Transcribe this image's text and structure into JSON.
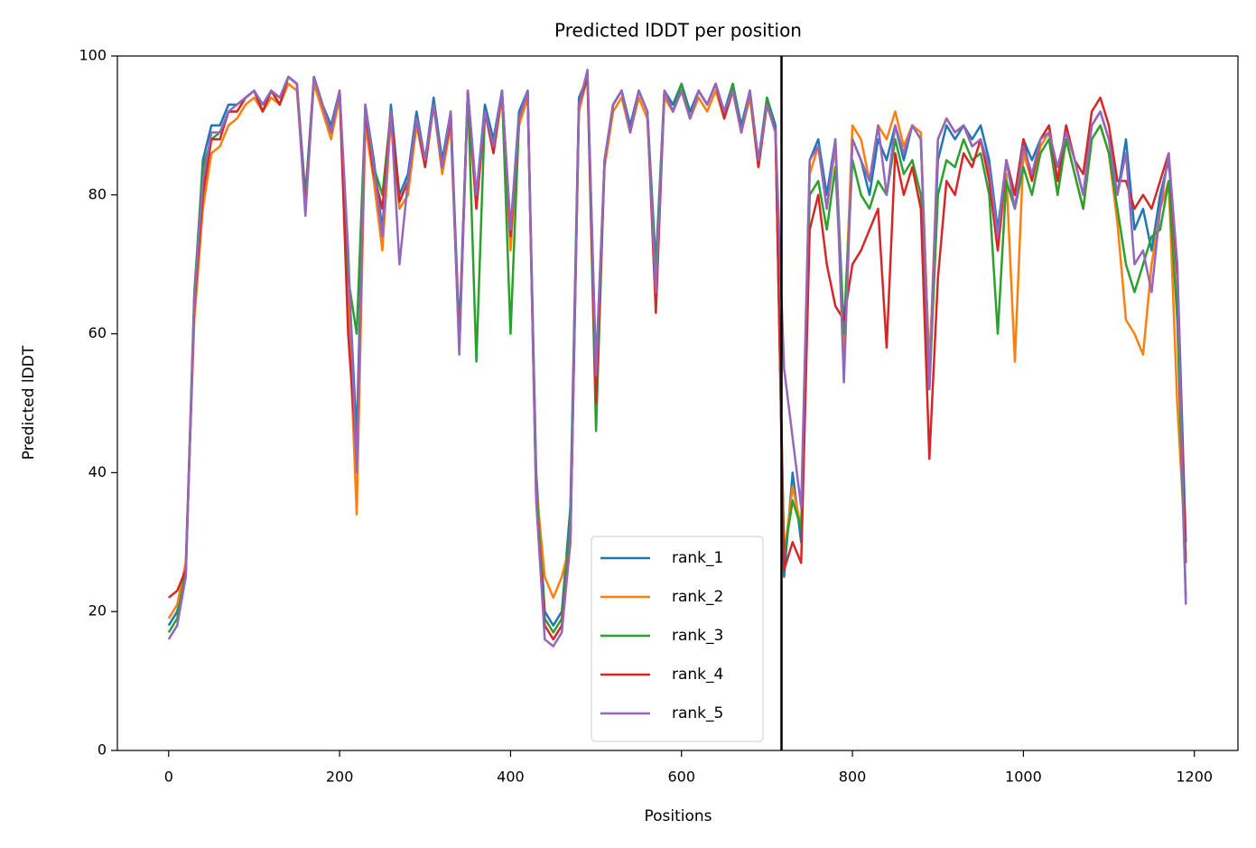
{
  "chart_data": {
    "type": "line",
    "title": "Predicted lDDT per position",
    "xlabel": "Positions",
    "ylabel": "Predicted lDDT",
    "xlim": [
      -60,
      1251
    ],
    "ylim": [
      0,
      100
    ],
    "xticks": [
      0,
      200,
      400,
      600,
      800,
      1000,
      1200
    ],
    "yticks": [
      0,
      20,
      40,
      60,
      80,
      100
    ],
    "vline": 717,
    "legend": "lower center",
    "x": [
      0,
      10,
      20,
      30,
      40,
      50,
      60,
      70,
      80,
      90,
      100,
      110,
      120,
      130,
      140,
      150,
      160,
      170,
      180,
      190,
      200,
      210,
      220,
      230,
      240,
      250,
      260,
      270,
      280,
      290,
      300,
      310,
      320,
      330,
      340,
      350,
      360,
      370,
      380,
      390,
      400,
      410,
      420,
      430,
      440,
      450,
      460,
      470,
      480,
      490,
      500,
      510,
      520,
      530,
      540,
      550,
      560,
      570,
      580,
      590,
      600,
      610,
      620,
      630,
      640,
      650,
      660,
      670,
      680,
      690,
      700,
      710,
      720,
      730,
      740,
      750,
      760,
      770,
      780,
      790,
      800,
      810,
      820,
      830,
      840,
      850,
      860,
      870,
      880,
      890,
      900,
      910,
      920,
      930,
      940,
      950,
      960,
      970,
      980,
      990,
      1000,
      1010,
      1020,
      1030,
      1040,
      1050,
      1060,
      1070,
      1080,
      1090,
      1100,
      1110,
      1120,
      1130,
      1140,
      1150,
      1160,
      1170,
      1180,
      1190
    ],
    "series": [
      {
        "name": "rank_1",
        "color": "#1f77b4",
        "values": [
          18,
          20,
          25,
          65,
          85,
          90,
          90,
          93,
          93,
          94,
          95,
          93,
          95,
          94,
          97,
          96,
          80,
          97,
          93,
          90,
          95,
          70,
          45,
          93,
          85,
          75,
          93,
          80,
          83,
          92,
          85,
          94,
          85,
          92,
          60,
          95,
          80,
          93,
          88,
          95,
          75,
          92,
          95,
          40,
          20,
          18,
          20,
          35,
          94,
          97,
          55,
          85,
          93,
          95,
          90,
          95,
          92,
          70,
          95,
          93,
          96,
          92,
          95,
          93,
          96,
          92,
          96,
          90,
          95,
          85,
          94,
          90,
          25,
          40,
          30,
          85,
          88,
          80,
          88,
          60,
          88,
          85,
          80,
          88,
          85,
          90,
          85,
          90,
          88,
          55,
          85,
          90,
          88,
          90,
          88,
          90,
          85,
          75,
          85,
          80,
          88,
          85,
          88,
          90,
          82,
          90,
          85,
          80,
          90,
          92,
          88,
          80,
          88,
          75,
          78,
          72,
          80,
          85,
          70,
          30
        ]
      },
      {
        "name": "rank_2",
        "color": "#ff7f0e",
        "values": [
          19,
          21,
          27,
          62,
          78,
          86,
          87,
          90,
          91,
          93,
          94,
          92,
          94,
          93,
          96,
          95,
          79,
          96,
          92,
          88,
          94,
          65,
          34,
          90,
          82,
          72,
          91,
          78,
          80,
          90,
          84,
          93,
          83,
          90,
          58,
          94,
          78,
          92,
          86,
          94,
          72,
          90,
          94,
          38,
          25,
          22,
          25,
          30,
          92,
          97,
          52,
          84,
          92,
          94,
          89,
          94,
          91,
          68,
          94,
          92,
          95,
          91,
          94,
          92,
          95,
          91,
          95,
          89,
          94,
          84,
          93,
          89,
          28,
          38,
          32,
          83,
          87,
          78,
          87,
          58,
          90,
          88,
          82,
          90,
          88,
          92,
          87,
          90,
          89,
          54,
          88,
          91,
          89,
          90,
          87,
          88,
          83,
          72,
          83,
          56,
          86,
          82,
          87,
          89,
          80,
          88,
          83,
          78,
          88,
          90,
          86,
          76,
          62,
          60,
          57,
          70,
          78,
          82,
          50,
          28
        ]
      },
      {
        "name": "rank_3",
        "color": "#2ca02c",
        "values": [
          17,
          19,
          26,
          66,
          84,
          88,
          89,
          92,
          92,
          94,
          95,
          92,
          95,
          93,
          97,
          96,
          79,
          97,
          93,
          89,
          95,
          68,
          60,
          92,
          84,
          80,
          92,
          79,
          82,
          91,
          84,
          93,
          84,
          91,
          59,
          95,
          56,
          92,
          87,
          95,
          60,
          91,
          95,
          38,
          19,
          17,
          19,
          33,
          93,
          97,
          46,
          85,
          93,
          95,
          89,
          95,
          92,
          69,
          95,
          92,
          96,
          91,
          95,
          93,
          96,
          91,
          96,
          89,
          95,
          84,
          94,
          89,
          28,
          36,
          32,
          80,
          82,
          75,
          84,
          60,
          85,
          80,
          78,
          82,
          80,
          88,
          83,
          85,
          80,
          52,
          80,
          85,
          84,
          88,
          85,
          86,
          80,
          60,
          82,
          78,
          84,
          80,
          86,
          88,
          80,
          88,
          83,
          78,
          88,
          90,
          86,
          78,
          70,
          66,
          70,
          74,
          75,
          82,
          62,
          22
        ]
      },
      {
        "name": "rank_4",
        "color": "#d62728",
        "values": [
          22,
          23,
          26,
          64,
          80,
          88,
          88,
          92,
          92,
          94,
          95,
          92,
          95,
          93,
          97,
          96,
          78,
          97,
          93,
          89,
          95,
          60,
          42,
          92,
          83,
          78,
          92,
          79,
          82,
          91,
          84,
          93,
          84,
          91,
          58,
          95,
          78,
          92,
          86,
          95,
          74,
          91,
          95,
          36,
          18,
          16,
          18,
          30,
          93,
          97,
          50,
          85,
          93,
          95,
          89,
          95,
          92,
          63,
          95,
          92,
          95,
          91,
          95,
          93,
          96,
          91,
          95,
          89,
          95,
          84,
          93,
          89,
          26,
          30,
          27,
          75,
          80,
          70,
          64,
          62,
          70,
          72,
          75,
          78,
          58,
          86,
          80,
          84,
          78,
          42,
          68,
          82,
          80,
          86,
          84,
          88,
          82,
          72,
          85,
          80,
          88,
          82,
          88,
          90,
          82,
          90,
          85,
          83,
          92,
          94,
          90,
          82,
          82,
          78,
          80,
          78,
          82,
          86,
          68,
          27
        ]
      },
      {
        "name": "rank_5",
        "color": "#9467bd",
        "values": [
          16,
          18,
          25,
          65,
          82,
          89,
          89,
          92,
          93,
          94,
          95,
          93,
          95,
          94,
          97,
          96,
          77,
          97,
          93,
          89,
          95,
          72,
          40,
          93,
          84,
          74,
          92,
          70,
          82,
          91,
          85,
          93,
          84,
          92,
          57,
          95,
          80,
          92,
          87,
          95,
          75,
          91,
          95,
          36,
          16,
          15,
          17,
          30,
          93,
          98,
          54,
          85,
          93,
          95,
          89,
          95,
          92,
          66,
          95,
          92,
          95,
          91,
          95,
          93,
          96,
          92,
          95,
          89,
          95,
          85,
          93,
          89,
          55,
          45,
          35,
          85,
          87,
          78,
          88,
          53,
          88,
          85,
          82,
          90,
          80,
          90,
          86,
          90,
          88,
          52,
          88,
          91,
          89,
          90,
          87,
          88,
          84,
          74,
          85,
          78,
          87,
          83,
          88,
          89,
          84,
          89,
          85,
          80,
          90,
          92,
          88,
          80,
          86,
          70,
          72,
          66,
          78,
          86,
          70,
          21
        ]
      }
    ]
  }
}
